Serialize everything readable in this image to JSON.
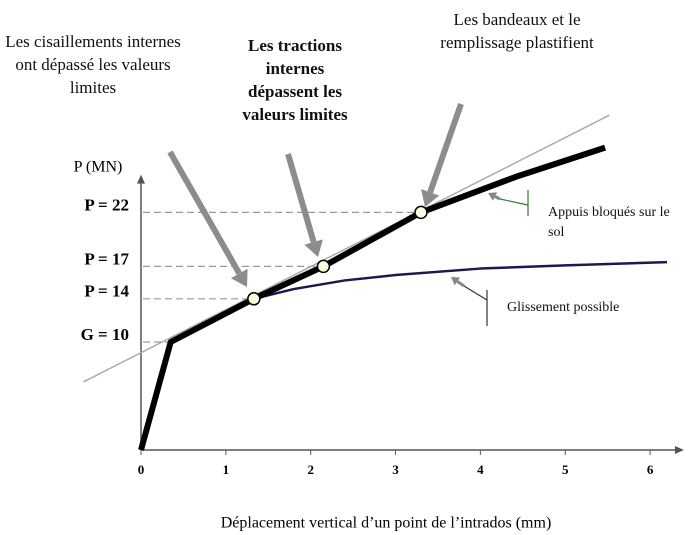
{
  "chart_data": {
    "type": "line",
    "xlabel": "Déplacement vertical d’un point de l’intrados (mm)",
    "ylabel": "P (MN)",
    "xlim": [
      0,
      6.4
    ],
    "ylim": [
      0,
      25.5
    ],
    "xticks": [
      0,
      1,
      2,
      3,
      4,
      5,
      6
    ],
    "yticks": [
      {
        "value": 10,
        "label": "G = 10"
      },
      {
        "value": 14,
        "label": "P = 14"
      },
      {
        "value": 17,
        "label": "P = 17"
      },
      {
        "value": 22,
        "label": "P = 22"
      }
    ],
    "series": [
      {
        "color": "#aaaaaa",
        "line_width": 1.5,
        "x": [
          -0.68,
          5.52
        ],
        "values": [
          6.3,
          31.0
        ]
      },
      {
        "name": "Glissement possible",
        "color": "#1a1a50",
        "line_width": 2.5,
        "x": [
          1.33,
          1.8,
          2.4,
          3,
          4,
          5,
          6.2
        ],
        "values": [
          14,
          14.9,
          15.7,
          16.2,
          16.8,
          17.1,
          17.4
        ]
      },
      {
        "name": "Appuis bloqués sur le sol",
        "color": "#000000",
        "line_width": 6,
        "x": [
          0,
          0.35,
          1.33,
          2.15,
          3.3,
          4.42,
          5.47
        ],
        "values": [
          0,
          10,
          14,
          17,
          22,
          25.3,
          28
        ]
      },
      {
        "color": "#fffde0",
        "marker": true,
        "x": [
          1.33,
          2.15,
          3.3
        ],
        "values": [
          14,
          17,
          22
        ]
      }
    ],
    "annotations": [
      {
        "text": "Les cisaillements internes ont dépassé les valeurs limites",
        "bold": false
      },
      {
        "text": "Les tractions internes dépassent les valeurs limites",
        "bold": true
      },
      {
        "text": "Les bandeaux et le remplissage plastifient",
        "bold": false
      }
    ]
  }
}
